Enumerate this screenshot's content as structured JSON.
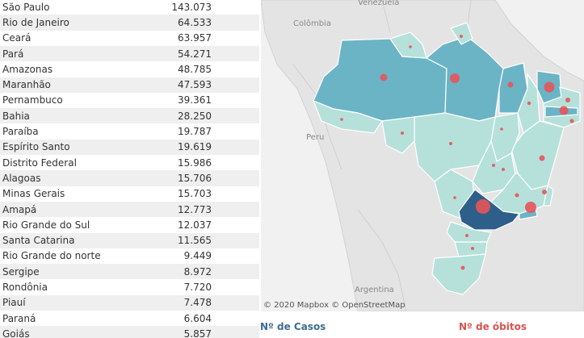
{
  "table": {
    "rows": [
      {
        "state": "São Paulo",
        "cases": "143.073"
      },
      {
        "state": "Rio de Janeiro",
        "cases": "64.533"
      },
      {
        "state": "Ceará",
        "cases": "63.957"
      },
      {
        "state": "Pará",
        "cases": "54.271"
      },
      {
        "state": "Amazonas",
        "cases": "48.785"
      },
      {
        "state": "Maranhão",
        "cases": "47.593"
      },
      {
        "state": "Pernambuco",
        "cases": "39.361"
      },
      {
        "state": "Bahia",
        "cases": "28.250"
      },
      {
        "state": "Paraíba",
        "cases": "19.787"
      },
      {
        "state": "Espírito Santo",
        "cases": "19.619"
      },
      {
        "state": "Distrito Federal",
        "cases": "15.986"
      },
      {
        "state": "Alagoas",
        "cases": "15.706"
      },
      {
        "state": "Minas Gerais",
        "cases": "15.703"
      },
      {
        "state": "Amapá",
        "cases": "12.773"
      },
      {
        "state": "Rio Grande do Sul",
        "cases": "12.037"
      },
      {
        "state": "Santa Catarina",
        "cases": "11.565"
      },
      {
        "state": "Rio Grande do norte",
        "cases": "9.449"
      },
      {
        "state": "Sergipe",
        "cases": "8.972"
      },
      {
        "state": "Rondônia",
        "cases": "7.720"
      },
      {
        "state": "Piauí",
        "cases": "7.478"
      },
      {
        "state": "Paraná",
        "cases": "6.604"
      },
      {
        "state": "Goiás",
        "cases": "5.857"
      }
    ]
  },
  "map": {
    "labels": {
      "venezuela": "Venezuela",
      "colombia": "Colômbia",
      "peru": "Peru",
      "argentina": "Argentina"
    },
    "attribution": "© 2020 Mapbox © OpenStreetMap",
    "colors": {
      "highest": "#2e5f8a",
      "high": "#6ab4c6",
      "low": "#b5e1da",
      "death_marker": "#e8545a"
    }
  },
  "legend": {
    "cases": "Nº de Casos",
    "deaths": "Nº de óbitos"
  }
}
